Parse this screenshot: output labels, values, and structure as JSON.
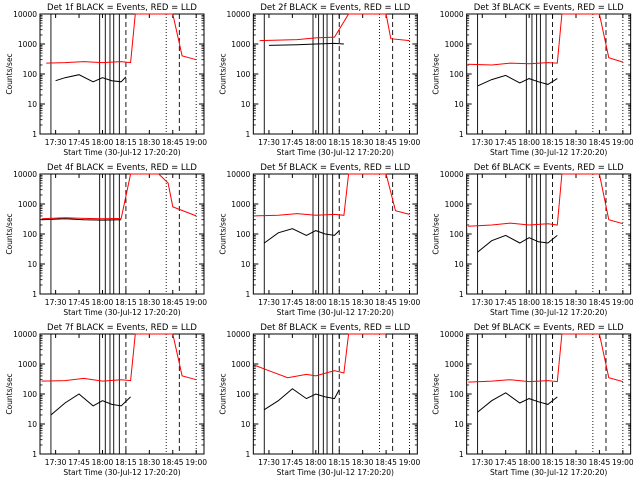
{
  "shared": {
    "ylabel": "Counts/sec",
    "xlabel": "Start Time (30-Jul-12 17:20:20)",
    "yticks": [
      "1",
      "10",
      "100",
      "1000",
      "10000"
    ],
    "colors": {
      "events": "#000000",
      "lld": "#ff0000"
    }
  },
  "chart_data": [
    {
      "type": "line",
      "title": "Det 1f BLACK = Events, RED = LLD",
      "xticks": [
        "17:30",
        "17:45",
        "18:00",
        "18:15",
        "18:30",
        "18:45",
        "19:00"
      ],
      "ylim": [
        1,
        10000
      ],
      "yscale": "log",
      "series": [
        {
          "color": "black",
          "x": [
            17.5,
            17.6,
            17.75,
            17.9,
            18.0,
            18.1,
            18.2,
            18.25
          ],
          "y": [
            60,
            75,
            95,
            55,
            75,
            60,
            55,
            80
          ]
        },
        {
          "color": "red",
          "x": [
            17.4,
            17.6,
            17.8,
            18.0,
            18.2,
            18.3,
            18.35,
            18.45,
            18.75,
            18.85,
            19.0
          ],
          "y": [
            230,
            240,
            260,
            240,
            260,
            240,
            10000,
            10000,
            10000,
            400,
            300
          ]
        }
      ]
    },
    {
      "type": "line",
      "title": "Det 2f BLACK = Events, RED = LLD",
      "xticks": [
        "17:30",
        "17:45",
        "18:00",
        "18:15",
        "18:30",
        "18:45",
        "19:00"
      ],
      "ylim": [
        1,
        10000
      ],
      "yscale": "log",
      "series": [
        {
          "color": "black",
          "x": [
            17.5,
            17.8,
            18.0,
            18.2,
            18.3
          ],
          "y": [
            900,
            950,
            1000,
            1050,
            1000
          ]
        },
        {
          "color": "red",
          "x": [
            17.4,
            17.8,
            18.0,
            18.2,
            18.35,
            18.5,
            18.75,
            18.8,
            19.0
          ],
          "y": [
            1300,
            1400,
            1600,
            1700,
            10000,
            10000,
            10000,
            1500,
            1300
          ]
        }
      ]
    },
    {
      "type": "line",
      "title": "Det 3f BLACK = Events, RED = LLD",
      "xticks": [
        "17:30",
        "17:45",
        "18:00",
        "18:15",
        "18:30",
        "18:45",
        "19:00"
      ],
      "ylim": [
        1,
        10000
      ],
      "yscale": "log",
      "series": [
        {
          "color": "black",
          "x": [
            17.45,
            17.6,
            17.75,
            17.9,
            18.0,
            18.1,
            18.2,
            18.3
          ],
          "y": [
            40,
            65,
            90,
            50,
            70,
            55,
            45,
            70
          ]
        },
        {
          "color": "red",
          "x": [
            17.35,
            17.6,
            17.8,
            18.0,
            18.2,
            18.3,
            18.35,
            18.75,
            18.85,
            19.0
          ],
          "y": [
            210,
            200,
            230,
            220,
            240,
            230,
            10000,
            10000,
            350,
            250
          ]
        }
      ]
    },
    {
      "type": "line",
      "title": "Det 4f BLACK = Events, RED = LLD",
      "xticks": [
        "17:30",
        "17:45",
        "18:00",
        "18:15",
        "18:30",
        "18:45",
        "19:00"
      ],
      "ylim": [
        1,
        10000
      ],
      "yscale": "log",
      "series": [
        {
          "color": "black",
          "x": [
            17.35,
            17.6,
            17.8,
            18.0,
            18.2
          ],
          "y": [
            300,
            320,
            300,
            290,
            300
          ]
        },
        {
          "color": "red",
          "x": [
            17.35,
            17.6,
            17.8,
            18.0,
            18.2,
            18.3,
            18.6,
            18.7,
            18.75,
            19.0
          ],
          "y": [
            320,
            350,
            330,
            320,
            330,
            10000,
            10000,
            5000,
            800,
            400
          ]
        }
      ]
    },
    {
      "type": "line",
      "title": "Det 5f BLACK = Events, RED = LLD",
      "xticks": [
        "17:30",
        "17:45",
        "18:00",
        "18:15",
        "18:30",
        "18:45",
        "19:00"
      ],
      "ylim": [
        1,
        10000
      ],
      "yscale": "log",
      "series": [
        {
          "color": "black",
          "x": [
            17.45,
            17.6,
            17.75,
            17.9,
            18.0,
            18.1,
            18.2,
            18.25
          ],
          "y": [
            50,
            110,
            150,
            90,
            130,
            100,
            90,
            130
          ]
        },
        {
          "color": "red",
          "x": [
            17.35,
            17.6,
            17.8,
            18.0,
            18.2,
            18.3,
            18.35,
            18.75,
            18.85,
            19.0
          ],
          "y": [
            400,
            420,
            480,
            420,
            450,
            420,
            10000,
            10000,
            600,
            450
          ]
        }
      ]
    },
    {
      "type": "line",
      "title": "Det 6f BLACK = Events, RED = LLD",
      "xticks": [
        "17:30",
        "17:45",
        "18:00",
        "18:15",
        "18:30",
        "18:45",
        "19:00"
      ],
      "ylim": [
        1,
        10000
      ],
      "yscale": "log",
      "series": [
        {
          "color": "black",
          "x": [
            17.45,
            17.6,
            17.75,
            17.9,
            18.0,
            18.1,
            18.2,
            18.3
          ],
          "y": [
            25,
            60,
            90,
            50,
            75,
            55,
            50,
            90
          ]
        },
        {
          "color": "red",
          "x": [
            17.35,
            17.6,
            17.8,
            18.0,
            18.2,
            18.3,
            18.35,
            18.75,
            18.85,
            19.0
          ],
          "y": [
            180,
            200,
            230,
            200,
            220,
            200,
            10000,
            10000,
            300,
            220
          ]
        }
      ]
    },
    {
      "type": "line",
      "title": "Det 7f BLACK = Events, RED = LLD",
      "xticks": [
        "17:30",
        "17:45",
        "18:00",
        "18:15",
        "18:30",
        "18:45",
        "19:00"
      ],
      "ylim": [
        1,
        10000
      ],
      "yscale": "log",
      "series": [
        {
          "color": "black",
          "x": [
            17.45,
            17.6,
            17.75,
            17.9,
            18.0,
            18.1,
            18.2,
            18.3
          ],
          "y": [
            20,
            50,
            100,
            40,
            60,
            45,
            40,
            80
          ]
        },
        {
          "color": "red",
          "x": [
            17.35,
            17.6,
            17.8,
            18.0,
            18.2,
            18.3,
            18.35,
            18.75,
            18.85,
            19.0
          ],
          "y": [
            270,
            280,
            330,
            270,
            300,
            280,
            10000,
            10000,
            400,
            300
          ]
        }
      ]
    },
    {
      "type": "line",
      "title": "Det 8f BLACK = Events, RED = LLD",
      "xticks": [
        "17:30",
        "17:45",
        "18:00",
        "18:15",
        "18:30",
        "18:45",
        "19:00"
      ],
      "ylim": [
        1,
        10000
      ],
      "yscale": "log",
      "series": [
        {
          "color": "black",
          "x": [
            17.45,
            17.6,
            17.75,
            17.9,
            18.0,
            18.1,
            18.2,
            18.25
          ],
          "y": [
            30,
            60,
            150,
            70,
            100,
            80,
            70,
            140
          ]
        },
        {
          "color": "red",
          "x": [
            17.35,
            17.5,
            17.7,
            17.9,
            18.0,
            18.2,
            18.3,
            18.35,
            18.75
          ],
          "y": [
            900,
            600,
            350,
            450,
            400,
            600,
            500,
            10000,
            10000
          ]
        }
      ]
    },
    {
      "type": "line",
      "title": "Det 9f BLACK = Events, RED = LLD",
      "xticks": [
        "17:30",
        "17:45",
        "18:00",
        "18:15",
        "18:30",
        "18:45",
        "19:00"
      ],
      "ylim": [
        1,
        10000
      ],
      "yscale": "log",
      "series": [
        {
          "color": "black",
          "x": [
            17.45,
            17.6,
            17.75,
            17.9,
            18.0,
            18.1,
            18.2,
            18.3
          ],
          "y": [
            25,
            60,
            110,
            50,
            70,
            55,
            45,
            80
          ]
        },
        {
          "color": "red",
          "x": [
            17.35,
            17.6,
            17.8,
            18.0,
            18.2,
            18.3,
            18.35,
            18.75,
            18.85,
            19.0
          ],
          "y": [
            250,
            270,
            300,
            260,
            280,
            260,
            10000,
            10000,
            350,
            260
          ]
        }
      ]
    }
  ]
}
